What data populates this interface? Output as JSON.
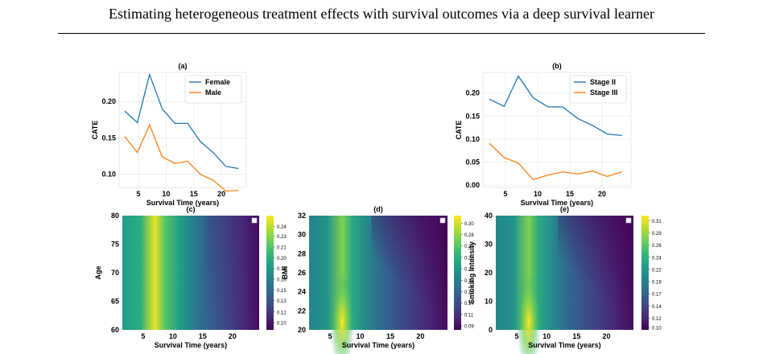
{
  "page": {
    "title": "Estimating heterogeneous treatment effects with survival outcomes via a deep survival learner"
  },
  "chart_data": [
    {
      "id": "a",
      "type": "line",
      "title": "(a)",
      "xlabel": "Survival Time (years)",
      "ylabel": "CATE",
      "xlim": [
        1.5,
        24.5
      ],
      "ylim": [
        0.082,
        0.24
      ],
      "xticks": [
        5,
        10,
        15,
        20
      ],
      "yticks": [
        0.1,
        0.15,
        0.2
      ],
      "ytick_labels": [
        "0.10",
        "0.15",
        "0.20"
      ],
      "grid": true,
      "legend": "top-right",
      "x": [
        2.5,
        4.8,
        7.0,
        9.3,
        11.6,
        13.9,
        16.2,
        18.5,
        20.8,
        23.1
      ],
      "series": [
        {
          "name": "Female",
          "color": "#1f77b4",
          "values": [
            0.187,
            0.171,
            0.237,
            0.19,
            0.17,
            0.17,
            0.145,
            0.13,
            0.111,
            0.108
          ]
        },
        {
          "name": "Male",
          "color": "#ff7f0e",
          "values": [
            0.152,
            0.13,
            0.168,
            0.124,
            0.115,
            0.118,
            0.1,
            0.092,
            0.077,
            0.078
          ]
        }
      ]
    },
    {
      "id": "b",
      "type": "line",
      "title": "(b)",
      "xlabel": "Survival Time (years)",
      "ylabel": "CATE",
      "xlim": [
        1.5,
        24.5
      ],
      "ylim": [
        -0.005,
        0.245
      ],
      "xticks": [
        5,
        10,
        15,
        20
      ],
      "yticks": [
        0.0,
        0.05,
        0.1,
        0.15,
        0.2
      ],
      "ytick_labels": [
        "0.00",
        "0.05",
        "0.10",
        "0.15",
        "0.20"
      ],
      "grid": true,
      "legend": "top-right",
      "x": [
        2.5,
        4.8,
        7.0,
        9.3,
        11.6,
        13.9,
        16.2,
        18.5,
        20.8,
        23.1
      ],
      "series": [
        {
          "name": "Stage II",
          "color": "#1f77b4",
          "values": [
            0.187,
            0.171,
            0.237,
            0.19,
            0.17,
            0.17,
            0.145,
            0.13,
            0.111,
            0.108
          ]
        },
        {
          "name": "Stage III",
          "color": "#ff7f0e",
          "values": [
            0.091,
            0.06,
            0.048,
            0.012,
            0.022,
            0.029,
            0.024,
            0.031,
            0.019,
            0.029
          ]
        }
      ]
    },
    {
      "id": "c",
      "type": "heatmap",
      "title": "(c)",
      "xlabel": "Survival Time (years)",
      "ylabel": "Age",
      "xlim": [
        1.5,
        24.5
      ],
      "ylim": [
        60,
        80
      ],
      "xticks": [
        5,
        10,
        15,
        20
      ],
      "yticks": [
        60,
        65,
        70,
        75,
        80
      ],
      "ytick_labels": [
        "60",
        "65",
        "70",
        "75",
        "80"
      ],
      "colormap": "viridis",
      "colorbar_range": [
        0.095,
        0.255
      ],
      "colorbar_ticks": [
        "0.24",
        "0.23",
        "0.21",
        "0.20",
        "0.18",
        "0.16",
        "0.15",
        "0.13",
        "0.12",
        "0.10"
      ],
      "colorbar_values": [
        0.24,
        0.226,
        0.211,
        0.196,
        0.181,
        0.166,
        0.151,
        0.136,
        0.12,
        0.105
      ],
      "peak_x": 7,
      "pattern": "vertical",
      "peak_value": 0.245
    },
    {
      "id": "d",
      "type": "heatmap",
      "title": "(d)",
      "xlabel": "Survival Time (years)",
      "ylabel": "BMI",
      "xlim": [
        1.5,
        24.5
      ],
      "ylim": [
        20,
        32
      ],
      "xticks": [
        5,
        10,
        15,
        20
      ],
      "yticks": [
        20,
        22,
        24,
        26,
        28,
        30,
        32
      ],
      "ytick_labels": [
        "20",
        "22",
        "24",
        "26",
        "28",
        "30",
        "32"
      ],
      "colormap": "viridis",
      "colorbar_range": [
        0.085,
        0.315
      ],
      "colorbar_ticks": [
        "0.30",
        "0.28",
        "0.26",
        "0.23",
        "0.21",
        "0.18",
        "0.16",
        "0.14",
        "0.11",
        "0.09"
      ],
      "colorbar_values": [
        0.3,
        0.277,
        0.254,
        0.231,
        0.208,
        0.185,
        0.162,
        0.139,
        0.116,
        0.093
      ],
      "peak_x": 7,
      "pattern": "low-y-peak",
      "peak_value": 0.305
    },
    {
      "id": "e",
      "type": "heatmap",
      "title": "(e)",
      "xlabel": "Survival Time (years)",
      "ylabel": "Smoking Intensity",
      "xlim": [
        1.5,
        24.5
      ],
      "ylim": [
        0,
        40
      ],
      "xticks": [
        5,
        10,
        15,
        20
      ],
      "yticks": [
        0,
        10,
        20,
        30,
        40
      ],
      "ytick_labels": [
        "0",
        "10",
        "20",
        "30",
        "40"
      ],
      "colormap": "viridis",
      "colorbar_range": [
        0.095,
        0.32
      ],
      "colorbar_ticks": [
        "0.31",
        "0.29",
        "0.26",
        "0.24",
        "0.22",
        "0.19",
        "0.17",
        "0.14",
        "0.12",
        "0.10"
      ],
      "colorbar_values": [
        0.31,
        0.286,
        0.262,
        0.238,
        0.214,
        0.19,
        0.166,
        0.142,
        0.118,
        0.1
      ],
      "peak_x": 7,
      "pattern": "low-y-peak",
      "peak_value": 0.312
    }
  ]
}
